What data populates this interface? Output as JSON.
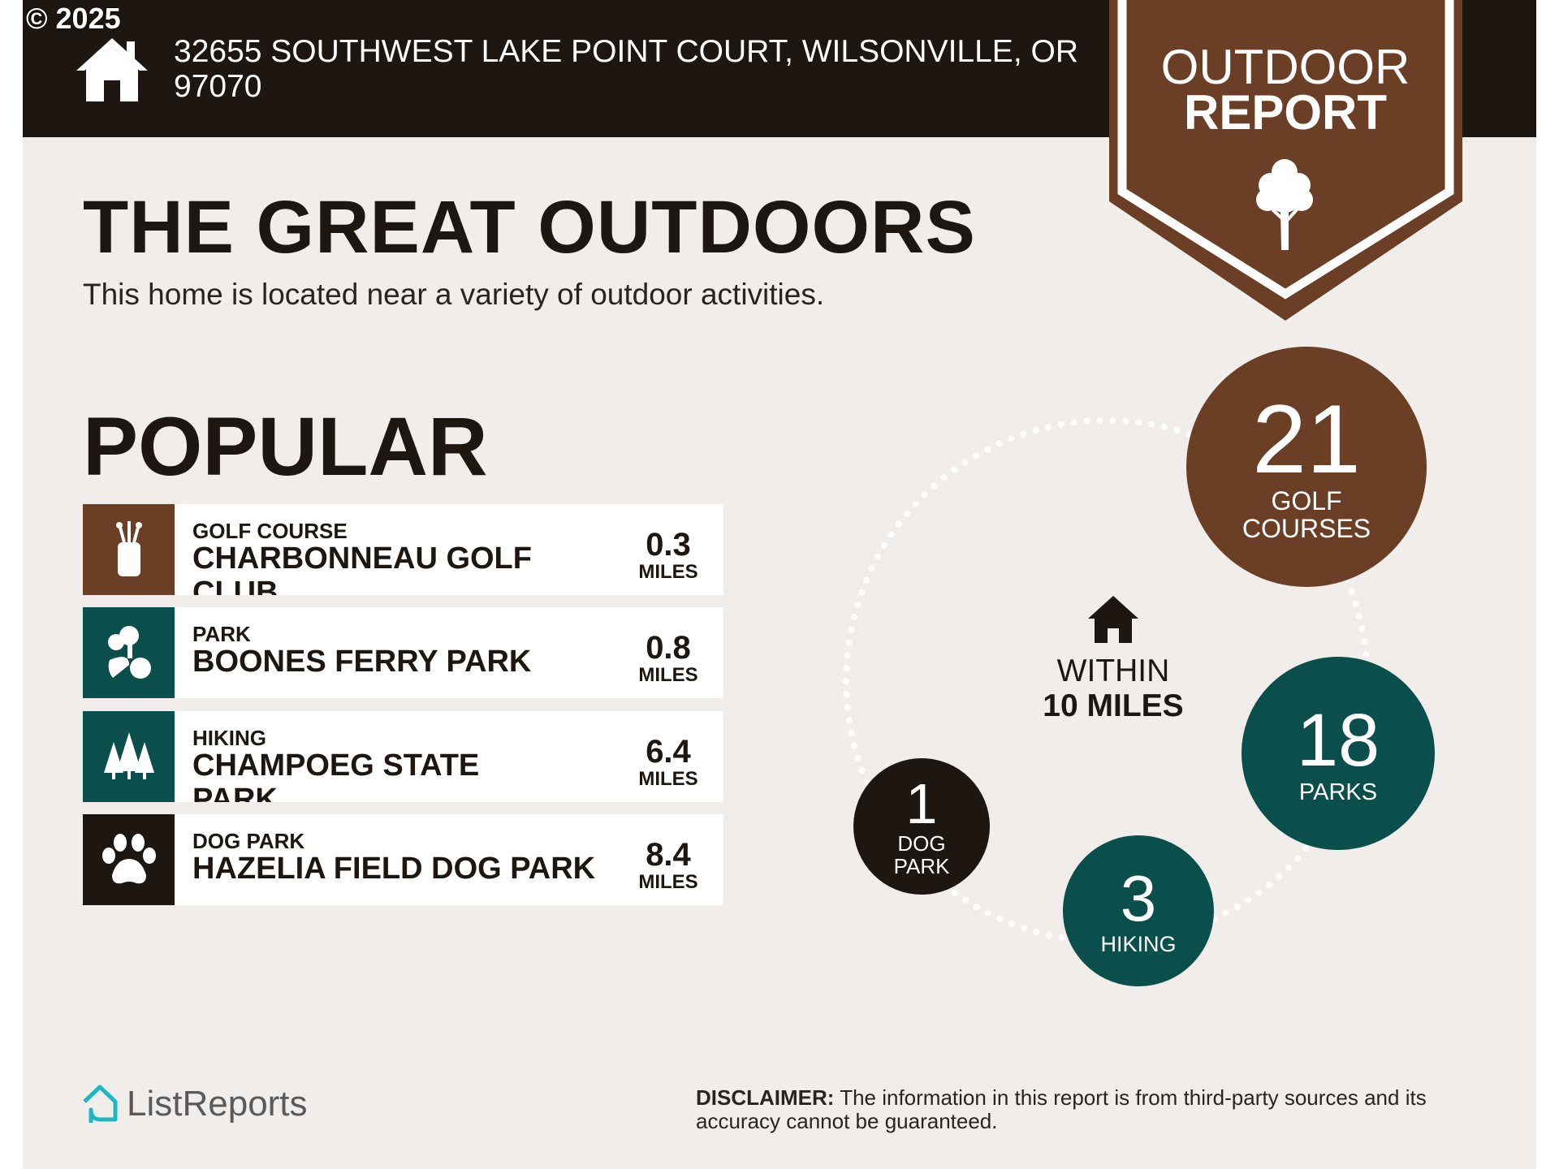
{
  "copyright": "© 2025",
  "header": {
    "address": "32655 SOUTHWEST LAKE POINT COURT, WILSONVILLE, OR 97070"
  },
  "badge": {
    "line1": "OUTDOOR",
    "line2": "REPORT",
    "icon": "tree-icon"
  },
  "title": "THE GREAT OUTDOORS",
  "subtitle": "This home is located near a variety of outdoor activities.",
  "popular": {
    "heading": "POPULAR",
    "items": [
      {
        "category": "GOLF COURSE",
        "name": "CHARBONNEAU GOLF CLUB",
        "distance": "0.3",
        "unit": "MILES",
        "icon": "golf-bag-icon",
        "color": "#6b3f26"
      },
      {
        "category": "PARK",
        "name": "BOONES FERRY PARK",
        "distance": "0.8",
        "unit": "MILES",
        "icon": "park-icon",
        "color": "#0b4f4c"
      },
      {
        "category": "HIKING",
        "name": "CHAMPOEG STATE PARK",
        "distance": "6.4",
        "unit": "MILES",
        "icon": "pine-trees-icon",
        "color": "#0b4f4c"
      },
      {
        "category": "DOG PARK",
        "name": "HAZELIA FIELD DOG PARK",
        "distance": "8.4",
        "unit": "MILES",
        "icon": "paw-icon",
        "color": "#1e1611"
      }
    ]
  },
  "summary": {
    "within_line1": "WITHIN",
    "within_line2": "10 MILES",
    "counts": [
      {
        "value": "21",
        "label1": "GOLF",
        "label2": "COURSES",
        "color": "#6b3f26"
      },
      {
        "value": "18",
        "label1": "PARKS",
        "label2": "",
        "color": "#0b4f4c"
      },
      {
        "value": "3",
        "label1": "HIKING",
        "label2": "",
        "color": "#0b4f4c"
      },
      {
        "value": "1",
        "label1": "DOG",
        "label2": "PARK",
        "color": "#1e1611"
      }
    ]
  },
  "footer": {
    "logo": "ListReports",
    "disclaimer_label": "DISCLAIMER:",
    "disclaimer_text": " The information in this report is from third-party sources and its accuracy cannot be guaranteed."
  }
}
